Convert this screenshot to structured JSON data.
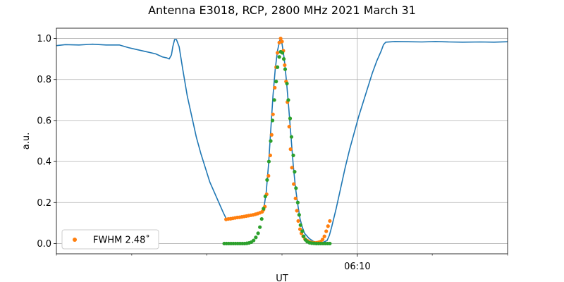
{
  "chart_data": {
    "type": "line",
    "title": "Antenna E3018, RCP, 2800 MHz 2021 March 31",
    "xlabel": "UT",
    "ylabel": "a.u.",
    "xlim": [
      0,
      1
    ],
    "ylim": [
      -0.05,
      1.05
    ],
    "yticks": [
      0.0,
      0.2,
      0.4,
      0.6,
      0.8,
      1.0
    ],
    "ytick_labels": [
      "0.0",
      "0.2",
      "0.4",
      "0.6",
      "0.8",
      "1.0"
    ],
    "xticks_major": [
      {
        "x": 0.667,
        "label": "06:10"
      }
    ],
    "xticks_minor": [
      0,
      0.167,
      0.333,
      0.5,
      0.833,
      1.0
    ],
    "grid": true,
    "legend_placement": "lower-left",
    "colors": {
      "blue": "#1f77b4",
      "orange": "#ff7f0e",
      "green": "#2ca02c"
    },
    "series": [
      {
        "kind": "line",
        "color": "#1f77b4",
        "points": [
          [
            0.0,
            0.965
          ],
          [
            0.02,
            0.97
          ],
          [
            0.05,
            0.968
          ],
          [
            0.08,
            0.972
          ],
          [
            0.11,
            0.968
          ],
          [
            0.14,
            0.968
          ],
          [
            0.16,
            0.955
          ],
          [
            0.18,
            0.945
          ],
          [
            0.2,
            0.935
          ],
          [
            0.22,
            0.925
          ],
          [
            0.235,
            0.91
          ],
          [
            0.245,
            0.905
          ],
          [
            0.25,
            0.9
          ],
          [
            0.255,
            0.92
          ],
          [
            0.258,
            0.96
          ],
          [
            0.262,
            0.995
          ],
          [
            0.266,
            0.995
          ],
          [
            0.272,
            0.96
          ],
          [
            0.28,
            0.85
          ],
          [
            0.29,
            0.72
          ],
          [
            0.3,
            0.62
          ],
          [
            0.31,
            0.52
          ],
          [
            0.32,
            0.44
          ],
          [
            0.33,
            0.37
          ],
          [
            0.34,
            0.3
          ],
          [
            0.35,
            0.25
          ],
          [
            0.36,
            0.2
          ],
          [
            0.37,
            0.15
          ],
          [
            0.376,
            0.123
          ],
          [
            0.38,
            0.118
          ],
          [
            0.39,
            0.12
          ],
          [
            0.4,
            0.125
          ],
          [
            0.41,
            0.128
          ],
          [
            0.42,
            0.131
          ],
          [
            0.43,
            0.135
          ],
          [
            0.44,
            0.139
          ],
          [
            0.45,
            0.145
          ],
          [
            0.455,
            0.155
          ],
          [
            0.46,
            0.175
          ],
          [
            0.465,
            0.25
          ],
          [
            0.47,
            0.38
          ],
          [
            0.475,
            0.55
          ],
          [
            0.48,
            0.72
          ],
          [
            0.485,
            0.85
          ],
          [
            0.49,
            0.94
          ],
          [
            0.495,
            0.99
          ],
          [
            0.5,
            0.975
          ],
          [
            0.505,
            0.9
          ],
          [
            0.51,
            0.79
          ],
          [
            0.515,
            0.66
          ],
          [
            0.52,
            0.52
          ],
          [
            0.525,
            0.38
          ],
          [
            0.53,
            0.27
          ],
          [
            0.535,
            0.19
          ],
          [
            0.54,
            0.12
          ],
          [
            0.545,
            0.08
          ],
          [
            0.55,
            0.05
          ],
          [
            0.56,
            0.025
          ],
          [
            0.57,
            0.01
          ],
          [
            0.58,
            0.004
          ],
          [
            0.59,
            0.005
          ],
          [
            0.6,
            0.015
          ],
          [
            0.605,
            0.04
          ],
          [
            0.61,
            0.08
          ],
          [
            0.62,
            0.17
          ],
          [
            0.63,
            0.27
          ],
          [
            0.64,
            0.37
          ],
          [
            0.65,
            0.46
          ],
          [
            0.66,
            0.54
          ],
          [
            0.67,
            0.62
          ],
          [
            0.68,
            0.69
          ],
          [
            0.69,
            0.76
          ],
          [
            0.7,
            0.83
          ],
          [
            0.71,
            0.89
          ],
          [
            0.72,
            0.94
          ],
          [
            0.725,
            0.97
          ],
          [
            0.73,
            0.982
          ],
          [
            0.75,
            0.985
          ],
          [
            0.78,
            0.984
          ],
          [
            0.81,
            0.983
          ],
          [
            0.84,
            0.985
          ],
          [
            0.87,
            0.983
          ],
          [
            0.9,
            0.982
          ],
          [
            0.94,
            0.983
          ],
          [
            0.97,
            0.982
          ],
          [
            1.0,
            0.984
          ]
        ]
      },
      {
        "kind": "scatter",
        "name": "FWHM 2.48$^\\circ$",
        "label_text": "FWHM 2.48˚",
        "color": "#ff7f0e",
        "points": [
          [
            0.376,
            0.118
          ],
          [
            0.381,
            0.12
          ],
          [
            0.386,
            0.121
          ],
          [
            0.391,
            0.123
          ],
          [
            0.396,
            0.125
          ],
          [
            0.401,
            0.127
          ],
          [
            0.406,
            0.128
          ],
          [
            0.411,
            0.13
          ],
          [
            0.416,
            0.132
          ],
          [
            0.421,
            0.134
          ],
          [
            0.426,
            0.136
          ],
          [
            0.431,
            0.138
          ],
          [
            0.436,
            0.14
          ],
          [
            0.441,
            0.143
          ],
          [
            0.446,
            0.146
          ],
          [
            0.451,
            0.15
          ],
          [
            0.456,
            0.155
          ],
          [
            0.459,
            0.165
          ],
          [
            0.462,
            0.18
          ],
          [
            0.466,
            0.24
          ],
          [
            0.47,
            0.33
          ],
          [
            0.474,
            0.43
          ],
          [
            0.477,
            0.53
          ],
          [
            0.48,
            0.63
          ],
          [
            0.484,
            0.76
          ],
          [
            0.487,
            0.86
          ],
          [
            0.49,
            0.93
          ],
          [
            0.494,
            0.98
          ],
          [
            0.497,
            1.0
          ],
          [
            0.5,
            0.985
          ],
          [
            0.503,
            0.94
          ],
          [
            0.506,
            0.87
          ],
          [
            0.509,
            0.79
          ],
          [
            0.512,
            0.69
          ],
          [
            0.516,
            0.57
          ],
          [
            0.519,
            0.46
          ],
          [
            0.522,
            0.37
          ],
          [
            0.526,
            0.29
          ],
          [
            0.53,
            0.22
          ],
          [
            0.533,
            0.16
          ],
          [
            0.536,
            0.11
          ],
          [
            0.54,
            0.07
          ],
          [
            0.543,
            0.05
          ],
          [
            0.547,
            0.035
          ],
          [
            0.551,
            0.022
          ],
          [
            0.556,
            0.014
          ],
          [
            0.561,
            0.008
          ],
          [
            0.566,
            0.005
          ],
          [
            0.571,
            0.004
          ],
          [
            0.576,
            0.004
          ],
          [
            0.581,
            0.006
          ],
          [
            0.586,
            0.01
          ],
          [
            0.59,
            0.02
          ],
          [
            0.594,
            0.035
          ],
          [
            0.598,
            0.06
          ],
          [
            0.602,
            0.085
          ],
          [
            0.606,
            0.11
          ]
        ]
      },
      {
        "kind": "scatter",
        "color": "#2ca02c",
        "points": [
          [
            0.372,
            0.0
          ],
          [
            0.377,
            0.0
          ],
          [
            0.382,
            0.0
          ],
          [
            0.387,
            0.0
          ],
          [
            0.392,
            0.0
          ],
          [
            0.397,
            0.0
          ],
          [
            0.402,
            0.0
          ],
          [
            0.407,
            0.0
          ],
          [
            0.412,
            0.0
          ],
          [
            0.417,
            0.0
          ],
          [
            0.422,
            0.001
          ],
          [
            0.427,
            0.003
          ],
          [
            0.432,
            0.007
          ],
          [
            0.437,
            0.015
          ],
          [
            0.442,
            0.03
          ],
          [
            0.447,
            0.05
          ],
          [
            0.451,
            0.08
          ],
          [
            0.455,
            0.12
          ],
          [
            0.459,
            0.17
          ],
          [
            0.463,
            0.23
          ],
          [
            0.467,
            0.31
          ],
          [
            0.471,
            0.4
          ],
          [
            0.475,
            0.5
          ],
          [
            0.479,
            0.6
          ],
          [
            0.483,
            0.7
          ],
          [
            0.487,
            0.79
          ],
          [
            0.49,
            0.86
          ],
          [
            0.494,
            0.91
          ],
          [
            0.497,
            0.935
          ],
          [
            0.501,
            0.93
          ],
          [
            0.504,
            0.9
          ],
          [
            0.507,
            0.85
          ],
          [
            0.511,
            0.78
          ],
          [
            0.514,
            0.7
          ],
          [
            0.518,
            0.61
          ],
          [
            0.521,
            0.52
          ],
          [
            0.525,
            0.43
          ],
          [
            0.528,
            0.35
          ],
          [
            0.531,
            0.27
          ],
          [
            0.535,
            0.2
          ],
          [
            0.538,
            0.14
          ],
          [
            0.541,
            0.09
          ],
          [
            0.545,
            0.06
          ],
          [
            0.548,
            0.035
          ],
          [
            0.552,
            0.018
          ],
          [
            0.556,
            0.009
          ],
          [
            0.561,
            0.004
          ],
          [
            0.566,
            0.002
          ],
          [
            0.571,
            0.001
          ],
          [
            0.576,
            0.0
          ],
          [
            0.581,
            0.0
          ],
          [
            0.586,
            0.0
          ],
          [
            0.591,
            0.0
          ],
          [
            0.596,
            0.0
          ],
          [
            0.601,
            0.0
          ],
          [
            0.606,
            0.0
          ]
        ]
      }
    ]
  }
}
